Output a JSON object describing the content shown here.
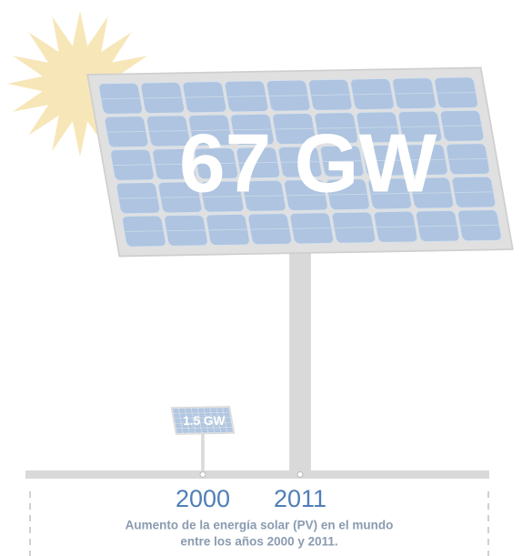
{
  "chart_data": {
    "type": "pictograph",
    "categories": [
      "2000",
      "2011"
    ],
    "values": [
      1.5,
      67
    ],
    "value_labels": [
      "1.5 GW",
      "67 GW"
    ],
    "color": "#aec4e0",
    "caption": [
      "Aumento de la energía solar (PV) en el mundo",
      "entre los años 2000 y 2011."
    ]
  }
}
